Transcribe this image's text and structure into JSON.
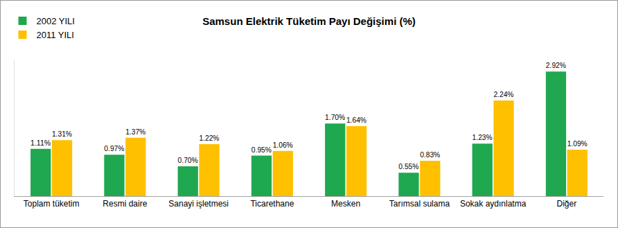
{
  "chart_data": {
    "type": "bar",
    "title": "Samsun Elektrik Tüketim Payı Değişimi (%)",
    "categories": [
      "Toplam tüketim",
      "Resmi daire",
      "Sanayi işletmesi",
      "Ticarethane",
      "Mesken",
      "Tarımsal sulama",
      "Sokak aydınlatma",
      "Diğer"
    ],
    "series": [
      {
        "name": "2002 YILI",
        "color": "#1fa84f",
        "values": [
          1.11,
          0.97,
          0.7,
          0.95,
          1.7,
          0.55,
          1.23,
          2.92
        ],
        "value_labels": [
          "1.11%",
          "0.97%",
          "0.70%",
          "0.95%",
          "1.70%",
          "0.55%",
          "1.23%",
          "2.92%"
        ]
      },
      {
        "name": "2011 YILI",
        "color": "#ffc000",
        "values": [
          1.31,
          1.37,
          1.22,
          1.06,
          1.64,
          0.83,
          2.24,
          1.09
        ],
        "value_labels": [
          "1.31%",
          "1.37%",
          "1.22%",
          "1.06%",
          "1.64%",
          "0.83%",
          "2.24%",
          "1.09%"
        ]
      }
    ],
    "ylim": [
      0,
      3.2
    ],
    "yticks": [
      0
    ],
    "grid": false,
    "legend": "upper left",
    "data_labels": true,
    "tick_labels": "x"
  }
}
